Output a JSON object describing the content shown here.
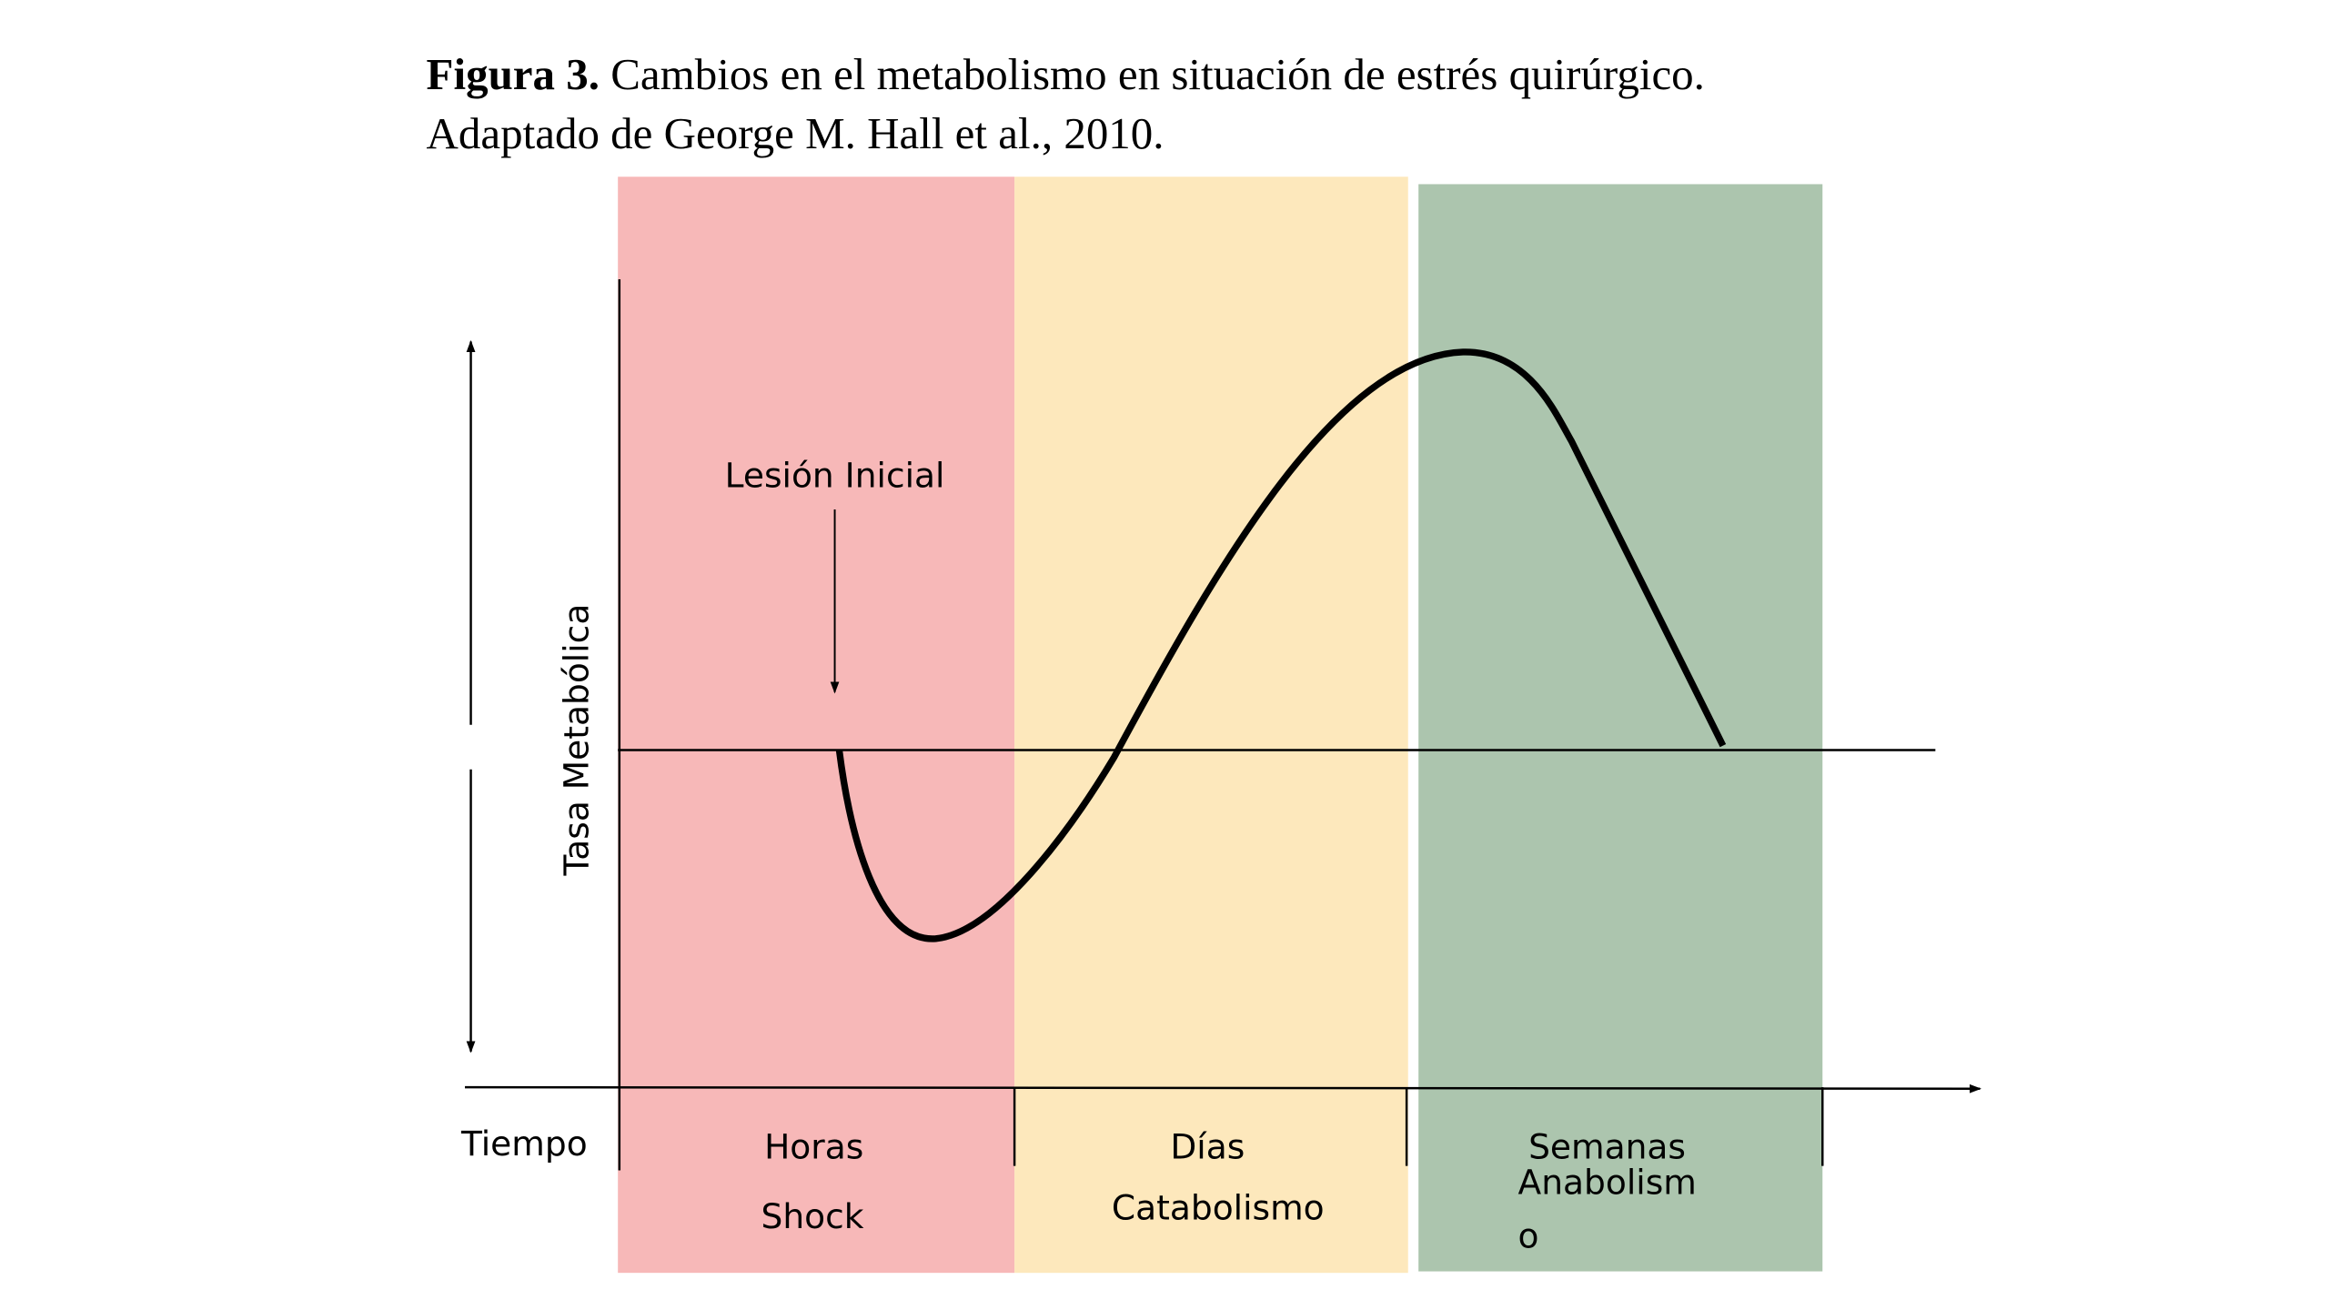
{
  "figure": {
    "title_label": "Figura 3.",
    "title_text": "Cambios en el metabolismo en situación de estrés quirúrgico.",
    "subtitle": "Adaptado de George M. Hall et al., 2010.",
    "y_axis_label": "Tasa Metabólica",
    "x_axis_label": "Tiempo",
    "annotation": "Lesión Inicial",
    "phases": [
      {
        "time": "Horas",
        "name_lines": [
          "Shock"
        ]
      },
      {
        "time": "Días",
        "name_lines": [
          "Catabolismo"
        ]
      },
      {
        "time": "Semanas",
        "name_lines": [
          "Anabolism",
          "o"
        ]
      }
    ]
  }
}
